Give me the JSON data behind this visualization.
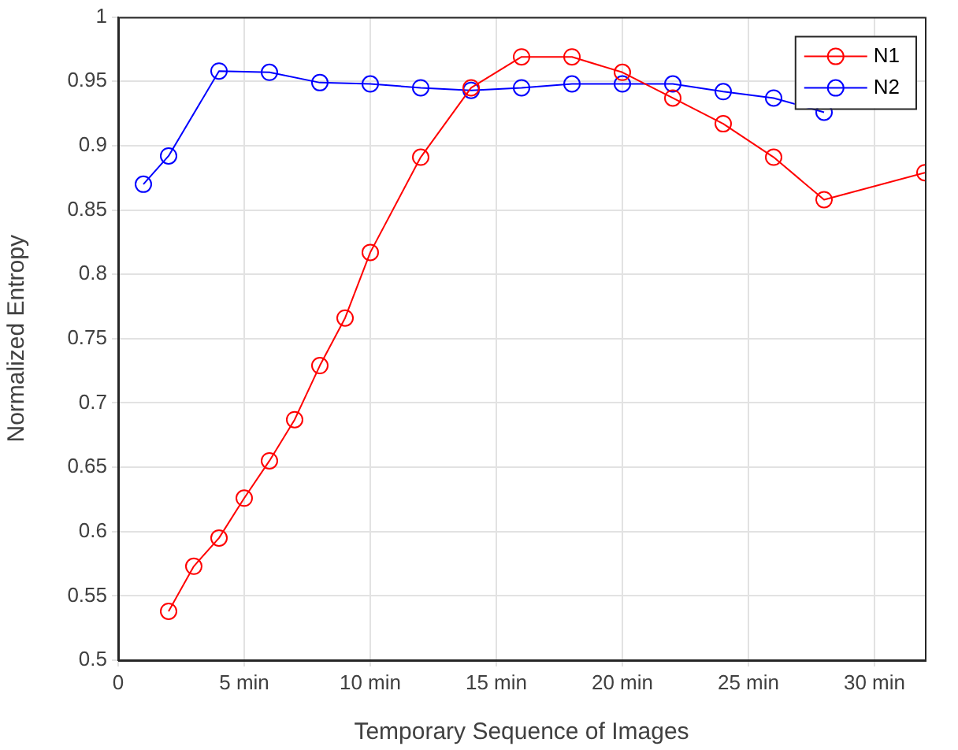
{
  "chart_data": {
    "type": "line",
    "xlabel": "Temporary Sequence of Images",
    "ylabel": "Normalized Entropy",
    "xlim": [
      0,
      32
    ],
    "xticks": [
      {
        "value": 0,
        "label": "0"
      },
      {
        "value": 5,
        "label": "5 min"
      },
      {
        "value": 10,
        "label": "10 min"
      },
      {
        "value": 15,
        "label": "15 min"
      },
      {
        "value": 20,
        "label": "20 min"
      },
      {
        "value": 25,
        "label": "25 min"
      },
      {
        "value": 30,
        "label": "30 min"
      }
    ],
    "ylim": [
      0.5,
      1
    ],
    "yticks": [
      0.5,
      0.55,
      0.6,
      0.65,
      0.7,
      0.75,
      0.8,
      0.85,
      0.9,
      0.95,
      1
    ],
    "grid": true,
    "legend": "top right",
    "marker": "circle",
    "line_style": "solid",
    "series": [
      {
        "name": "N1",
        "color": "#ff0000",
        "x": [
          2,
          3,
          4,
          5,
          6,
          7,
          8,
          9,
          10,
          12,
          14,
          16,
          18,
          20,
          22,
          24,
          26,
          28,
          32
        ],
        "values": [
          0.538,
          0.573,
          0.595,
          0.626,
          0.655,
          0.687,
          0.729,
          0.766,
          0.817,
          0.891,
          0.945,
          0.969,
          0.969,
          0.957,
          0.937,
          0.917,
          0.891,
          0.858,
          0.879
        ]
      },
      {
        "name": "N2",
        "color": "#0000ff",
        "x": [
          1,
          2,
          4,
          6,
          8,
          10,
          12,
          14,
          16,
          18,
          20,
          22,
          24,
          26,
          28
        ],
        "values": [
          0.87,
          0.892,
          0.958,
          0.957,
          0.949,
          0.948,
          0.945,
          0.943,
          0.945,
          0.948,
          0.948,
          0.948,
          0.942,
          0.937,
          0.926
        ]
      }
    ]
  }
}
